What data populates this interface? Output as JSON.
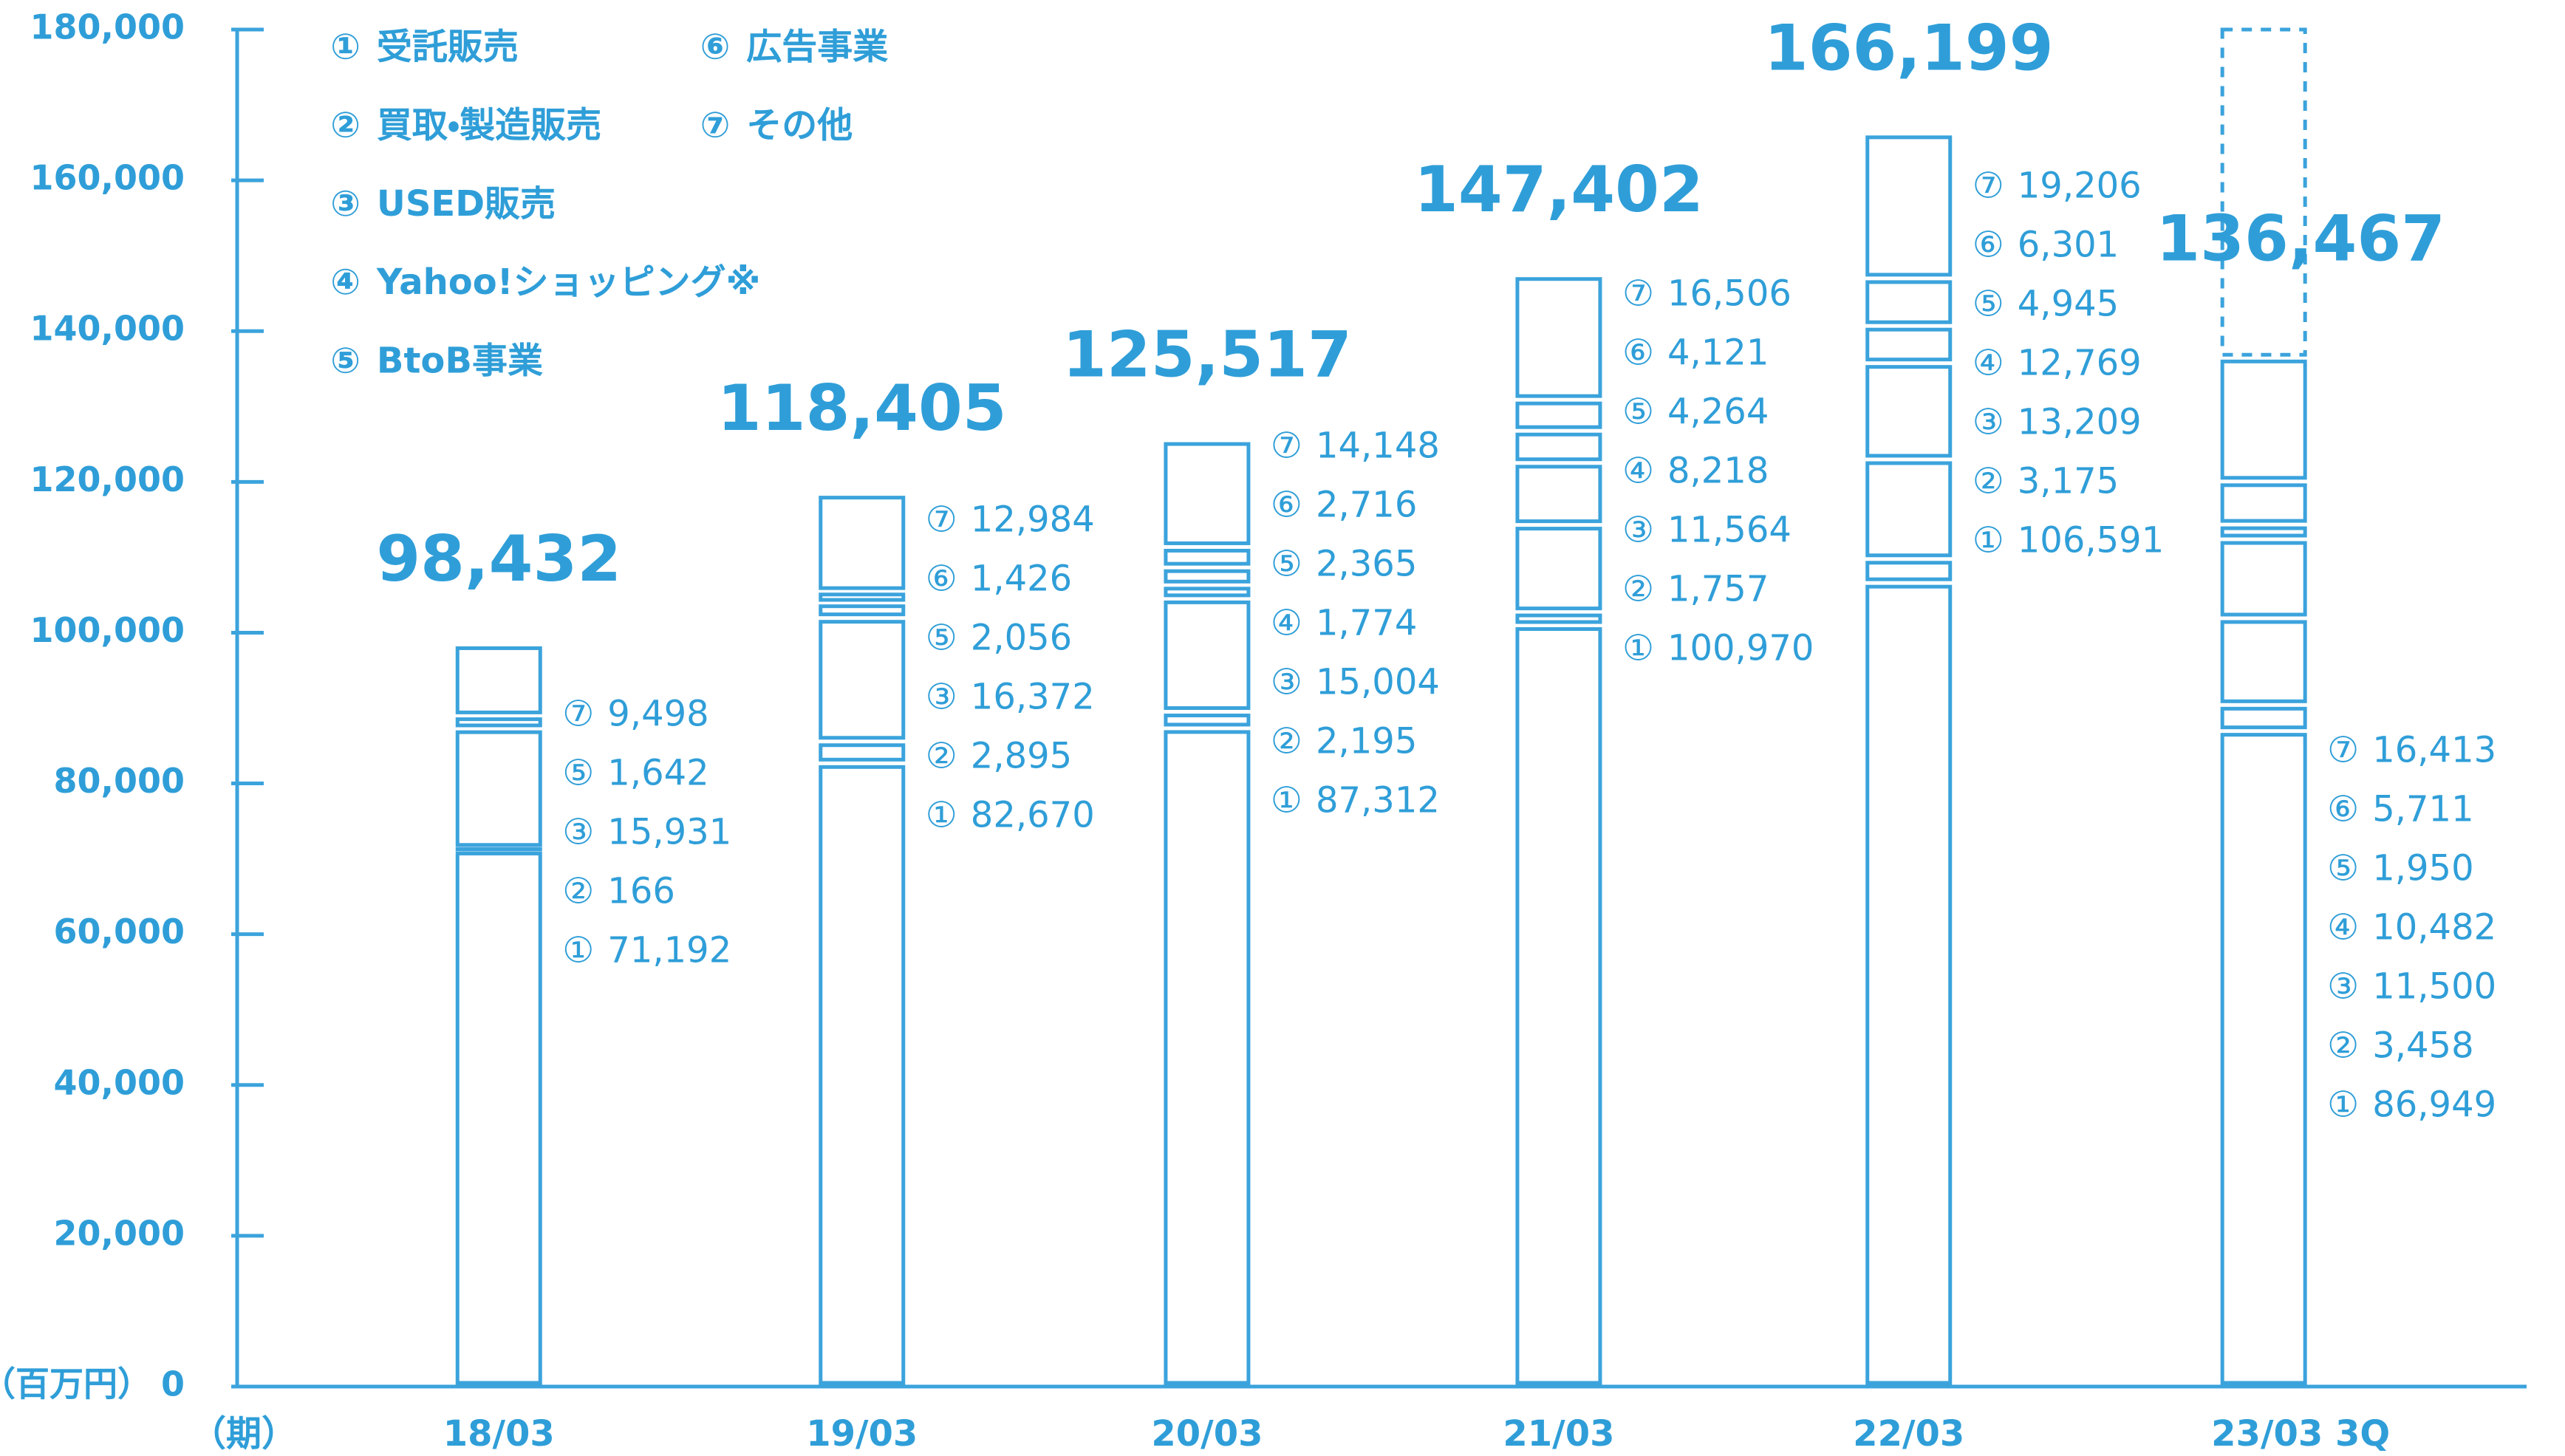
{
  "chart_data": {
    "type": "bar",
    "stacked": true,
    "color": "#3ba3dc",
    "y_unit_label": "（百万円）",
    "x_unit_label": "（期）",
    "categories": [
      "18/03",
      "19/03",
      "20/03",
      "21/03",
      "22/03",
      "23/03 3Q"
    ],
    "series": [
      {
        "marker": "①",
        "name": "受託販売",
        "values": [
          71192,
          82670,
          87312,
          100970,
          106591,
          86949
        ],
        "value_labels": [
          "71,192",
          "82,670",
          "87,312",
          "100,970",
          "106,591",
          "86,949"
        ]
      },
      {
        "marker": "②",
        "name": "買取・製造販売",
        "values": [
          166,
          2895,
          2195,
          1757,
          3175,
          3458
        ],
        "value_labels": [
          "166",
          "2,895",
          "2,195",
          "1,757",
          "3,175",
          "3,458"
        ]
      },
      {
        "marker": "③",
        "name": "USED販売",
        "values": [
          15931,
          16372,
          15004,
          11564,
          13209,
          11500
        ],
        "value_labels": [
          "15,931",
          "16,372",
          "15,004",
          "11,564",
          "13,209",
          "11,500"
        ]
      },
      {
        "marker": "④",
        "name": "Yahoo!ショッピング※",
        "values": [
          null,
          null,
          1774,
          8218,
          12769,
          10482
        ],
        "value_labels": [
          null,
          null,
          "1,774",
          "8,218",
          "12,769",
          "10,482"
        ]
      },
      {
        "marker": "⑤",
        "name": "BtoB事業",
        "values": [
          1642,
          2056,
          2365,
          4264,
          4945,
          1950
        ],
        "value_labels": [
          "1,642",
          "2,056",
          "2,365",
          "4,264",
          "4,945",
          "1,950"
        ]
      },
      {
        "marker": "⑥",
        "name": "広告事業",
        "values": [
          null,
          1426,
          2716,
          4121,
          6301,
          5711
        ],
        "value_labels": [
          null,
          "1,426",
          "2,716",
          "4,121",
          "6,301",
          "5,711"
        ]
      },
      {
        "marker": "⑦",
        "name": "その他",
        "values": [
          9498,
          12984,
          14148,
          16506,
          19206,
          16413
        ],
        "value_labels": [
          "9,498",
          "12,984",
          "14,148",
          "16,506",
          "19,206",
          "16,413"
        ]
      }
    ],
    "totals": {
      "values": [
        98432,
        118405,
        125517,
        147402,
        166199,
        136467
      ],
      "value_labels": [
        "98,432",
        "118,405",
        "125,517",
        "147,402",
        "166,199",
        "136,467"
      ]
    },
    "ylim": [
      0,
      180000
    ],
    "yticks": [
      0,
      {
        "value": 20000,
        "label": "20,000"
      },
      {
        "value": 40000,
        "label": "40,000"
      },
      {
        "value": 60000,
        "label": "60,000"
      },
      {
        "value": 80000,
        "label": "80,000"
      },
      {
        "value": 100000,
        "label": "100,000"
      },
      {
        "value": 120000,
        "label": "120,000"
      },
      {
        "value": 140000,
        "label": "140,000"
      },
      {
        "value": 160000,
        "label": "160,000"
      },
      {
        "value": 180000,
        "label": "180,000"
      }
    ]
  }
}
